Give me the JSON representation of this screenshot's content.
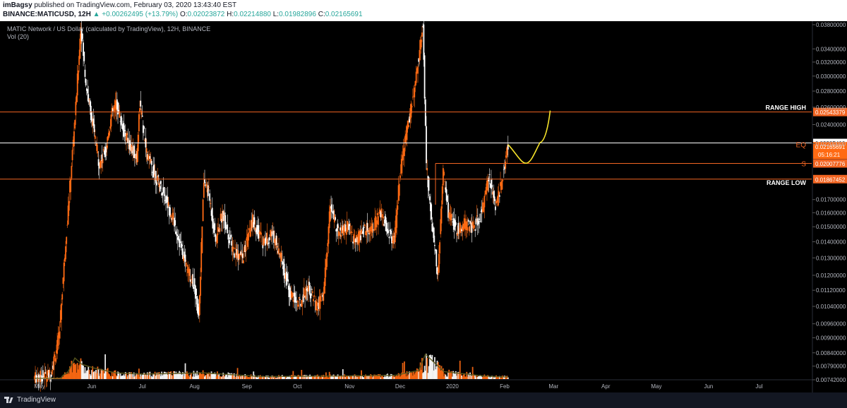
{
  "header": {
    "publisher": "imBagsy",
    "published_text": " published on TradingView.com, February 03, 2020 13:43:40 EST",
    "symbol": "BINANCE:MATICUSD, 12H",
    "change": "▲ +0.00262495 (+13.79%)",
    "open_label": "O:",
    "open_value": "0.02023872",
    "high_label": "H:",
    "high_value": "0.02214880",
    "low_label": "L:",
    "low_value": "0.01982896",
    "close_label": "C:",
    "close_value": "0.02165691"
  },
  "legend": {
    "title": "MATIC Network / US Dollar (calculated by TradingView), 12H, BINANCE",
    "volume": "Vol (20)"
  },
  "footer": {
    "brand": "TradingView"
  },
  "colors": {
    "up": "#ff6a13",
    "down": "#ffffff",
    "range_line": "#f26522",
    "eq_line": "#ffffff",
    "projection": "#f5e22a",
    "vol_ma": "#5c5a1e"
  },
  "chart_data": {
    "type": "candlestick",
    "scale": "log",
    "x_ticks": [
      "May",
      "Jun",
      "Jul",
      "Aug",
      "Sep",
      "Oct",
      "Nov",
      "Dec",
      "2020",
      "Feb",
      "Mar",
      "Apr",
      "May",
      "Jun",
      "Jul"
    ],
    "y_ticks": [
      "0.03800000",
      "0.03400000",
      "0.03200000",
      "0.03000000",
      "0.02800000",
      "0.02600000",
      "0.02400000",
      "0.02200000",
      "0.01700000",
      "0.01600000",
      "0.01500000",
      "0.01400000",
      "0.01300000",
      "0.01200000",
      "0.01120000",
      "0.01040000",
      "0.00960000",
      "0.00900000",
      "0.00840000",
      "0.00790000",
      "0.00742000"
    ],
    "y_tick_values": [
      0.038,
      0.034,
      0.032,
      0.03,
      0.028,
      0.026,
      0.024,
      0.022,
      0.017,
      0.016,
      0.015,
      0.014,
      0.013,
      0.012,
      0.0112,
      0.0104,
      0.0096,
      0.009,
      0.0084,
      0.0079,
      0.00742
    ],
    "levels": [
      {
        "name": "RANGE HIGH",
        "value": 0.02543379,
        "label": "0.02543379",
        "side_text": "RANGE HIGH"
      },
      {
        "name": "EQ",
        "value": 0.02205416,
        "label": "0.02205416",
        "side_text": "EQ"
      },
      {
        "name": "S",
        "value": 0.02007776,
        "label": "0.02007776",
        "side_text": "S"
      },
      {
        "name": "RANGE LOW",
        "value": 0.01867452,
        "label": "0.01867452",
        "side_text": "RANGE LOW"
      }
    ],
    "last_price": {
      "value": 0.02165691,
      "label": "0.02165691",
      "countdown": "05:16:21"
    },
    "path_points": [
      [
        "2019-04-28",
        0.0075
      ],
      [
        "2019-05-08",
        0.0076
      ],
      [
        "2019-05-13",
        0.009
      ],
      [
        "2019-05-17",
        0.014
      ],
      [
        "2019-05-20",
        0.019
      ],
      [
        "2019-05-23",
        0.026
      ],
      [
        "2019-05-26",
        0.038
      ],
      [
        "2019-05-29",
        0.029
      ],
      [
        "2019-06-02",
        0.024
      ],
      [
        "2019-06-06",
        0.02
      ],
      [
        "2019-06-10",
        0.0215
      ],
      [
        "2019-06-13",
        0.025
      ],
      [
        "2019-06-16",
        0.0265
      ],
      [
        "2019-06-20",
        0.0235
      ],
      [
        "2019-06-25",
        0.0215
      ],
      [
        "2019-06-28",
        0.0205
      ],
      [
        "2019-06-30",
        0.0265
      ],
      [
        "2019-07-04",
        0.021
      ],
      [
        "2019-07-09",
        0.019
      ],
      [
        "2019-07-14",
        0.0175
      ],
      [
        "2019-07-20",
        0.0155
      ],
      [
        "2019-07-26",
        0.013
      ],
      [
        "2019-08-01",
        0.0115
      ],
      [
        "2019-08-04",
        0.01
      ],
      [
        "2019-08-07",
        0.0185
      ],
      [
        "2019-08-10",
        0.0175
      ],
      [
        "2019-08-14",
        0.014
      ],
      [
        "2019-08-18",
        0.016
      ],
      [
        "2019-08-24",
        0.0135
      ],
      [
        "2019-08-30",
        0.013
      ],
      [
        "2019-09-05",
        0.0155
      ],
      [
        "2019-09-11",
        0.014
      ],
      [
        "2019-09-17",
        0.0145
      ],
      [
        "2019-09-22",
        0.013
      ],
      [
        "2019-09-27",
        0.011
      ],
      [
        "2019-10-03",
        0.0105
      ],
      [
        "2019-10-08",
        0.0115
      ],
      [
        "2019-10-13",
        0.0103
      ],
      [
        "2019-10-17",
        0.011
      ],
      [
        "2019-10-21",
        0.0165
      ],
      [
        "2019-10-26",
        0.0145
      ],
      [
        "2019-10-31",
        0.015
      ],
      [
        "2019-11-05",
        0.014
      ],
      [
        "2019-11-10",
        0.0148
      ],
      [
        "2019-11-15",
        0.015
      ],
      [
        "2019-11-20",
        0.016
      ],
      [
        "2019-11-25",
        0.0145
      ],
      [
        "2019-11-28",
        0.014
      ],
      [
        "2019-12-01",
        0.0185
      ],
      [
        "2019-12-05",
        0.023
      ],
      [
        "2019-12-09",
        0.027
      ],
      [
        "2019-12-12",
        0.032
      ],
      [
        "2019-12-15",
        0.038
      ],
      [
        "2019-12-17",
        0.02
      ],
      [
        "2019-12-20",
        0.0155
      ],
      [
        "2019-12-24",
        0.012
      ],
      [
        "2019-12-27",
        0.0195
      ],
      [
        "2019-12-30",
        0.016
      ],
      [
        "2020-01-04",
        0.0148
      ],
      [
        "2020-01-09",
        0.0152
      ],
      [
        "2020-01-14",
        0.015
      ],
      [
        "2020-01-19",
        0.016
      ],
      [
        "2020-01-23",
        0.019
      ],
      [
        "2020-01-27",
        0.0165
      ],
      [
        "2020-01-31",
        0.0185
      ],
      [
        "2020-02-03",
        0.0216
      ]
    ],
    "volume_points": [
      [
        "2019-05-14",
        0.1
      ],
      [
        "2019-05-18",
        0.3
      ],
      [
        "2019-05-22",
        0.85
      ],
      [
        "2019-05-26",
        0.6
      ],
      [
        "2019-06-02",
        0.45
      ],
      [
        "2019-06-15",
        0.25
      ],
      [
        "2019-07-02",
        0.2
      ],
      [
        "2019-08-06",
        0.25
      ],
      [
        "2019-09-10",
        0.1
      ],
      [
        "2019-10-20",
        0.12
      ],
      [
        "2019-11-28",
        0.15
      ],
      [
        "2019-12-12",
        0.35
      ],
      [
        "2019-12-16",
        1.0
      ],
      [
        "2019-12-27",
        0.3
      ],
      [
        "2020-01-20",
        0.12
      ],
      [
        "2020-02-03",
        0.08
      ]
    ]
  }
}
